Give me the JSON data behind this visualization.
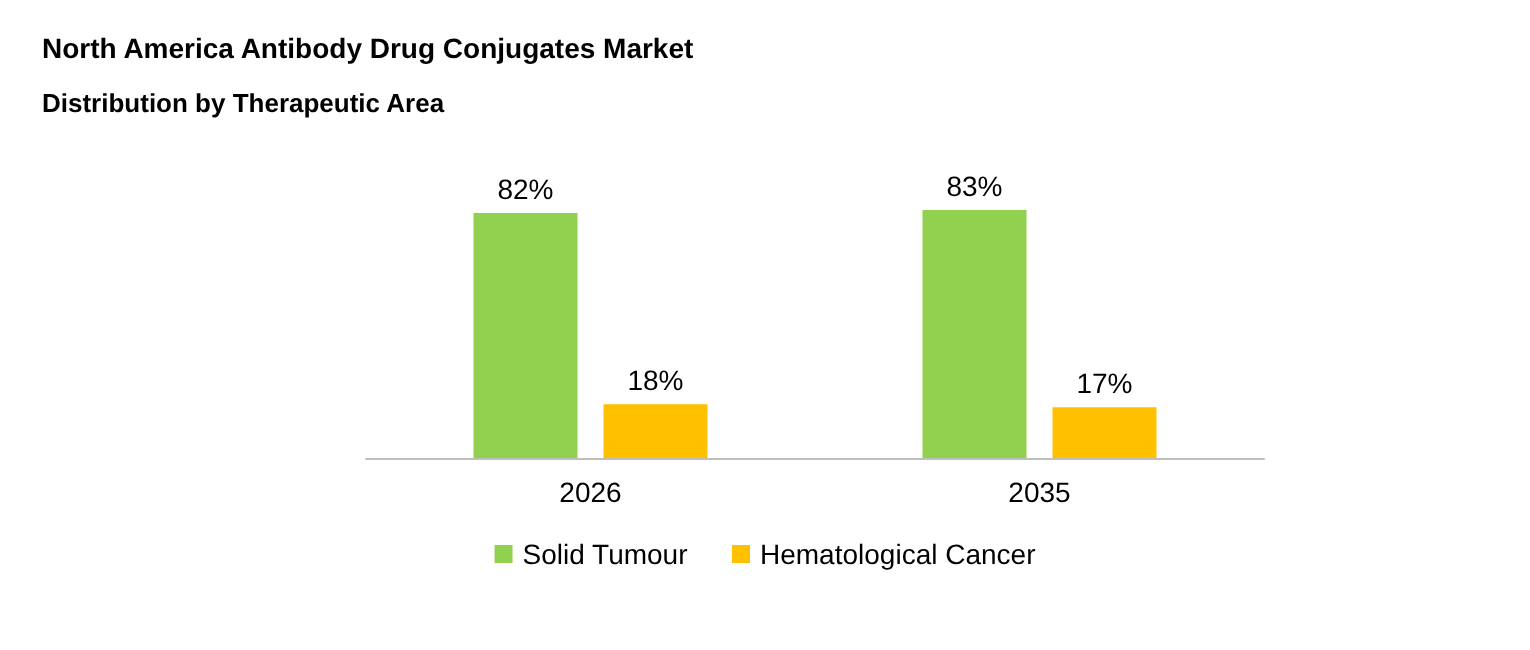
{
  "chart_data": {
    "type": "bar",
    "title": "North America Antibody Drug Conjugates Market",
    "subtitle": "Distribution by Therapeutic Area",
    "categories": [
      "2026",
      "2035"
    ],
    "series": [
      {
        "name": "Solid Tumour",
        "color": "#92d050",
        "values": [
          82,
          83
        ],
        "value_labels": [
          "82%",
          "83%"
        ]
      },
      {
        "name": "Hematological Cancer",
        "color": "#ffc000",
        "values": [
          18,
          17
        ],
        "value_labels": [
          "18%",
          "17%"
        ]
      }
    ],
    "legend": "bottom"
  }
}
